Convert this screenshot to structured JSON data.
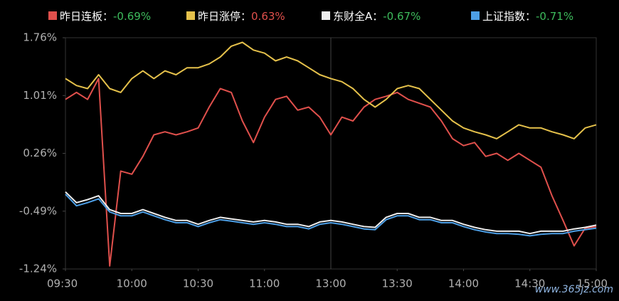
{
  "chart_data": {
    "type": "line",
    "x": [
      "09:30",
      "09:35",
      "09:40",
      "09:45",
      "09:50",
      "09:55",
      "10:00",
      "10:05",
      "10:10",
      "10:15",
      "10:20",
      "10:25",
      "10:30",
      "10:35",
      "10:40",
      "10:45",
      "10:50",
      "10:55",
      "11:00",
      "11:05",
      "11:10",
      "11:15",
      "11:20",
      "11:25",
      "13:00",
      "13:05",
      "13:10",
      "13:15",
      "13:20",
      "13:25",
      "13:30",
      "13:35",
      "13:40",
      "13:45",
      "13:50",
      "13:55",
      "14:00",
      "14:05",
      "14:10",
      "14:15",
      "14:20",
      "14:25",
      "14:30",
      "14:35",
      "14:40",
      "14:45",
      "14:50",
      "14:55",
      "15:00"
    ],
    "xticks": [
      "09:30",
      "10:00",
      "10:30",
      "11:00",
      "13:00",
      "13:30",
      "14:00",
      "14:30",
      "15:00"
    ],
    "ylim": [
      -1.24,
      1.76
    ],
    "yticks": [
      {
        "value": -1.24,
        "label": "-1.24%"
      },
      {
        "value": -0.49,
        "label": "-0.49%"
      },
      {
        "value": 0.26,
        "label": "0.26%"
      },
      {
        "value": 1.01,
        "label": "1.01%"
      },
      {
        "value": 1.76,
        "label": "1.76%"
      }
    ],
    "series": [
      {
        "name": "昨日连板：",
        "color": "#e0504c",
        "current": -0.69,
        "current_label": "-0.69%",
        "values": [
          0.96,
          1.05,
          0.96,
          1.23,
          -1.2,
          0.03,
          -0.01,
          0.22,
          0.5,
          0.54,
          0.5,
          0.54,
          0.59,
          0.86,
          1.1,
          1.05,
          0.68,
          0.4,
          0.73,
          0.96,
          1.0,
          0.82,
          0.86,
          0.73,
          0.5,
          0.73,
          0.68,
          0.86,
          0.96,
          1.0,
          1.05,
          0.96,
          0.91,
          0.86,
          0.68,
          0.45,
          0.36,
          0.4,
          0.22,
          0.26,
          0.17,
          0.26,
          0.17,
          0.08,
          -0.29,
          -0.61,
          -0.94,
          -0.71,
          -0.69
        ]
      },
      {
        "name": "昨日涨停：",
        "color": "#e5c14b",
        "current": 0.63,
        "current_label": "0.63%",
        "values": [
          1.23,
          1.14,
          1.1,
          1.28,
          1.1,
          1.05,
          1.23,
          1.33,
          1.23,
          1.33,
          1.28,
          1.37,
          1.37,
          1.42,
          1.51,
          1.65,
          1.7,
          1.6,
          1.56,
          1.46,
          1.51,
          1.46,
          1.37,
          1.28,
          1.23,
          1.19,
          1.1,
          0.96,
          0.86,
          0.96,
          1.1,
          1.14,
          1.1,
          0.96,
          0.82,
          0.68,
          0.59,
          0.54,
          0.5,
          0.45,
          0.54,
          0.63,
          0.59,
          0.59,
          0.54,
          0.5,
          0.45,
          0.59,
          0.63
        ]
      },
      {
        "name": "东财全A：",
        "color": "#eeeeee",
        "current": -0.67,
        "current_label": "-0.67%",
        "values": [
          -0.24,
          -0.38,
          -0.34,
          -0.29,
          -0.47,
          -0.52,
          -0.52,
          -0.47,
          -0.52,
          -0.57,
          -0.61,
          -0.61,
          -0.66,
          -0.61,
          -0.57,
          -0.59,
          -0.61,
          -0.63,
          -0.61,
          -0.63,
          -0.66,
          -0.66,
          -0.69,
          -0.63,
          -0.61,
          -0.63,
          -0.66,
          -0.69,
          -0.7,
          -0.57,
          -0.52,
          -0.52,
          -0.57,
          -0.57,
          -0.61,
          -0.61,
          -0.66,
          -0.7,
          -0.73,
          -0.75,
          -0.75,
          -0.75,
          -0.78,
          -0.75,
          -0.75,
          -0.75,
          -0.72,
          -0.7,
          -0.67
        ]
      },
      {
        "name": "上证指数：",
        "color": "#4d9fe6",
        "current": -0.71,
        "current_label": "-0.71%",
        "values": [
          -0.27,
          -0.42,
          -0.38,
          -0.33,
          -0.5,
          -0.55,
          -0.55,
          -0.5,
          -0.55,
          -0.6,
          -0.64,
          -0.64,
          -0.69,
          -0.64,
          -0.6,
          -0.62,
          -0.64,
          -0.66,
          -0.64,
          -0.66,
          -0.69,
          -0.69,
          -0.72,
          -0.66,
          -0.64,
          -0.66,
          -0.69,
          -0.72,
          -0.73,
          -0.6,
          -0.55,
          -0.55,
          -0.6,
          -0.6,
          -0.64,
          -0.64,
          -0.69,
          -0.73,
          -0.76,
          -0.78,
          -0.78,
          -0.79,
          -0.81,
          -0.79,
          -0.78,
          -0.78,
          -0.75,
          -0.73,
          -0.71
        ]
      }
    ],
    "watermark": "www.365jz.com"
  }
}
